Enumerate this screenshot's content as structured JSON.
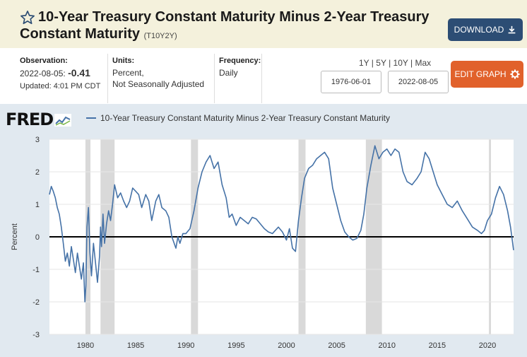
{
  "header": {
    "title": "10-Year Treasury Constant Maturity Minus 2-Year Treasury Constant Maturity",
    "series_code": "(T10Y2Y)",
    "download_label": "DOWNLOAD",
    "edit_label": "EDIT GRAPH"
  },
  "meta": {
    "observation_label": "Observation:",
    "observation_date": "2022-08-05:",
    "observation_value": "-0.41",
    "updated": "Updated: 4:01 PM CDT",
    "units_label": "Units:",
    "units_line1": "Percent,",
    "units_line2": "Not Seasonally Adjusted",
    "frequency_label": "Frequency:",
    "frequency_value": "Daily"
  },
  "range": {
    "links": [
      "1Y",
      "5Y",
      "10Y",
      "Max"
    ],
    "start_date": "1976-06-01",
    "end_date": "2022-08-05"
  },
  "colors": {
    "series": "#4572a7",
    "recession": "#d9d9d9",
    "header_bg": "#f4f1dc",
    "download_btn": "#2c4d74",
    "edit_btn": "#e1612b"
  },
  "chart_data": {
    "type": "line",
    "source_logo": "FRED",
    "ylabel": "Percent",
    "ylim": [
      -3,
      3
    ],
    "yticks": [
      -3,
      -2,
      -1,
      0,
      1,
      2,
      3
    ],
    "xlim": [
      1976.42,
      2022.6
    ],
    "xticks": [
      1980,
      1985,
      1990,
      1995,
      2000,
      2005,
      2010,
      2015,
      2020
    ],
    "zero_line": true,
    "recessions": [
      [
        1980.0,
        1980.5
      ],
      [
        1981.5,
        1982.9
      ],
      [
        1990.5,
        1991.2
      ],
      [
        2001.2,
        2001.9
      ],
      [
        2007.9,
        2009.5
      ],
      [
        2020.15,
        2020.35
      ]
    ],
    "series": [
      {
        "name": "10-Year Treasury Constant Maturity Minus 2-Year Treasury Constant Maturity",
        "x": [
          1976.42,
          1976.6,
          1976.8,
          1977.0,
          1977.2,
          1977.4,
          1977.6,
          1977.8,
          1978.0,
          1978.2,
          1978.4,
          1978.6,
          1978.8,
          1979.0,
          1979.2,
          1979.4,
          1979.6,
          1979.8,
          1979.95,
          1980.05,
          1980.15,
          1980.3,
          1980.45,
          1980.6,
          1980.8,
          1981.0,
          1981.2,
          1981.4,
          1981.5,
          1981.6,
          1981.75,
          1981.9,
          1982.1,
          1982.3,
          1982.5,
          1982.7,
          1982.9,
          1983.2,
          1983.5,
          1983.8,
          1984.1,
          1984.4,
          1984.7,
          1985.0,
          1985.3,
          1985.6,
          1986.0,
          1986.3,
          1986.6,
          1987.0,
          1987.3,
          1987.6,
          1988.0,
          1988.3,
          1988.6,
          1989.0,
          1989.2,
          1989.4,
          1989.7,
          1990.0,
          1990.4,
          1990.8,
          1991.2,
          1991.6,
          1992.0,
          1992.4,
          1992.8,
          1993.2,
          1993.6,
          1994.0,
          1994.3,
          1994.6,
          1995.0,
          1995.4,
          1995.8,
          1996.2,
          1996.6,
          1997.0,
          1997.4,
          1997.8,
          1998.2,
          1998.6,
          1998.9,
          1999.2,
          1999.6,
          2000.0,
          2000.3,
          2000.6,
          2000.9,
          2001.2,
          2001.5,
          2001.8,
          2002.2,
          2002.6,
          2003.0,
          2003.4,
          2003.8,
          2004.2,
          2004.6,
          2005.0,
          2005.4,
          2005.8,
          2006.2,
          2006.6,
          2007.0,
          2007.4,
          2007.7,
          2008.0,
          2008.4,
          2008.8,
          2009.2,
          2009.6,
          2010.0,
          2010.4,
          2010.8,
          2011.2,
          2011.6,
          2012.0,
          2012.5,
          2013.0,
          2013.4,
          2013.8,
          2014.2,
          2014.6,
          2015.0,
          2015.5,
          2016.0,
          2016.5,
          2017.0,
          2017.5,
          2018.0,
          2018.5,
          2019.0,
          2019.4,
          2019.7,
          2020.0,
          2020.4,
          2020.8,
          2021.2,
          2021.6,
          2022.0,
          2022.3,
          2022.6
        ],
        "y": [
          1.3,
          1.55,
          1.4,
          1.2,
          0.9,
          0.7,
          0.3,
          -0.2,
          -0.75,
          -0.5,
          -0.9,
          -0.3,
          -0.7,
          -1.1,
          -0.5,
          -0.9,
          -1.3,
          -0.8,
          -2.0,
          -1.5,
          0.3,
          0.9,
          -0.5,
          -1.2,
          -0.2,
          -0.8,
          -1.4,
          -0.6,
          0.3,
          -0.3,
          0.7,
          -0.2,
          0.4,
          0.8,
          0.5,
          1.0,
          1.6,
          1.2,
          1.35,
          1.1,
          0.9,
          1.1,
          1.5,
          1.4,
          1.3,
          0.9,
          1.3,
          1.1,
          0.5,
          1.1,
          1.3,
          0.9,
          0.8,
          0.6,
          0.0,
          -0.35,
          0.0,
          -0.2,
          0.1,
          0.1,
          0.25,
          0.8,
          1.5,
          2.0,
          2.3,
          2.5,
          2.1,
          2.3,
          1.6,
          1.2,
          0.6,
          0.7,
          0.35,
          0.6,
          0.5,
          0.4,
          0.6,
          0.55,
          0.4,
          0.25,
          0.15,
          0.1,
          0.2,
          0.3,
          0.15,
          -0.1,
          0.25,
          -0.35,
          -0.45,
          0.5,
          1.2,
          1.8,
          2.1,
          2.2,
          2.4,
          2.5,
          2.6,
          2.4,
          1.5,
          1.0,
          0.5,
          0.15,
          0.0,
          -0.1,
          -0.05,
          0.2,
          0.7,
          1.5,
          2.2,
          2.8,
          2.4,
          2.6,
          2.7,
          2.5,
          2.7,
          2.6,
          2.0,
          1.7,
          1.6,
          1.8,
          2.0,
          2.6,
          2.4,
          2.0,
          1.6,
          1.3,
          1.0,
          0.9,
          1.1,
          0.8,
          0.55,
          0.3,
          0.2,
          0.1,
          0.2,
          0.5,
          0.7,
          1.2,
          1.55,
          1.3,
          0.8,
          0.3,
          -0.41
        ]
      }
    ]
  }
}
